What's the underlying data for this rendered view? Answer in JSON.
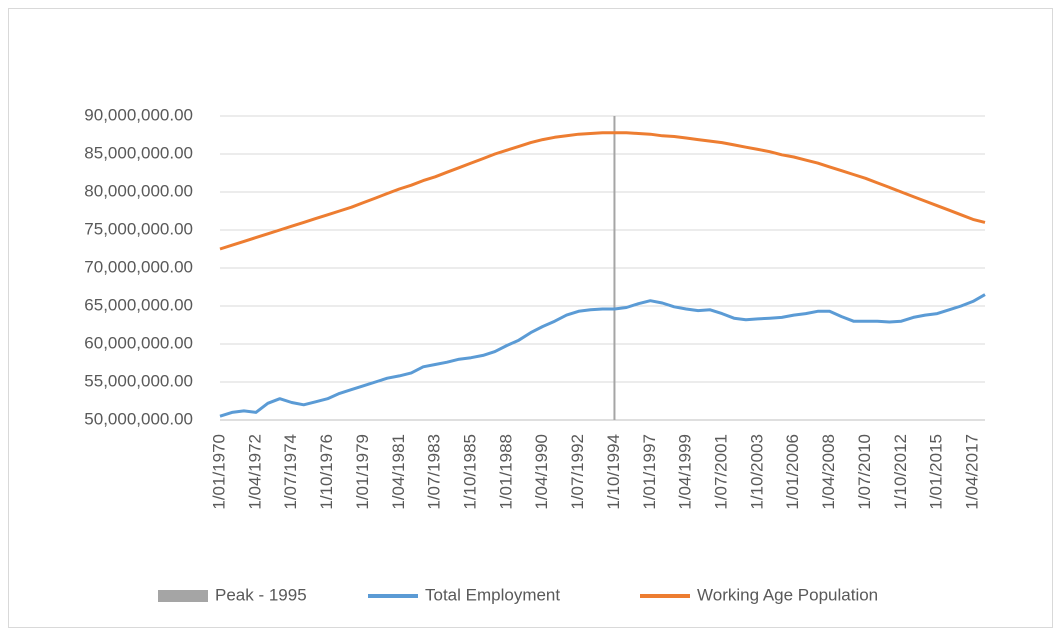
{
  "chart_data": {
    "type": "line",
    "categories": [
      "1/01/1970",
      null,
      null,
      "1/04/1972",
      null,
      null,
      "1/07/1974",
      null,
      null,
      "1/10/1976",
      null,
      null,
      "1/01/1979",
      null,
      null,
      "1/04/1981",
      null,
      null,
      "1/07/1983",
      null,
      null,
      "1/10/1985",
      null,
      null,
      "1/01/1988",
      null,
      null,
      "1/04/1990",
      null,
      null,
      "1/07/1992",
      null,
      null,
      "1/10/1994",
      null,
      null,
      "1/01/1997",
      null,
      null,
      "1/04/1999",
      null,
      null,
      "1/07/2001",
      null,
      null,
      "1/10/2003",
      null,
      null,
      "1/01/2006",
      null,
      null,
      "1/04/2008",
      null,
      null,
      "1/07/2010",
      null,
      null,
      "1/10/2012",
      null,
      null,
      "1/01/2015",
      null,
      null,
      "1/04/2017",
      null
    ],
    "series": [
      {
        "name": "Peak - 1995",
        "type": "bar",
        "color": "#a5a5a5",
        "values": [
          null,
          null,
          null,
          null,
          null,
          null,
          null,
          null,
          null,
          null,
          null,
          null,
          null,
          null,
          null,
          null,
          null,
          null,
          null,
          null,
          null,
          null,
          null,
          null,
          null,
          null,
          null,
          null,
          null,
          null,
          null,
          null,
          null,
          90000000,
          null,
          null,
          null,
          null,
          null,
          null,
          null,
          null,
          null,
          null,
          null,
          null,
          null,
          null,
          null,
          null,
          null,
          null,
          null,
          null,
          null,
          null,
          null,
          null,
          null,
          null,
          null,
          null,
          null,
          null,
          null
        ]
      },
      {
        "name": "Total Employment",
        "type": "line",
        "color": "#5b9bd5",
        "values": [
          50500000,
          51000000,
          51200000,
          51000000,
          52200000,
          52800000,
          52300000,
          52000000,
          52400000,
          52800000,
          53500000,
          54000000,
          54500000,
          55000000,
          55500000,
          55800000,
          56200000,
          57000000,
          57300000,
          57600000,
          58000000,
          58200000,
          58500000,
          59000000,
          59800000,
          60500000,
          61500000,
          62300000,
          63000000,
          63800000,
          64300000,
          64500000,
          64600000,
          64600000,
          64800000,
          65300000,
          65700000,
          65400000,
          64900000,
          64600000,
          64400000,
          64500000,
          64000000,
          63400000,
          63200000,
          63300000,
          63400000,
          63500000,
          63800000,
          64000000,
          64300000,
          64300000,
          63600000,
          63000000,
          63000000,
          63000000,
          62900000,
          63000000,
          63500000,
          63800000,
          64000000,
          64500000,
          65000000,
          65600000,
          66500000
        ]
      },
      {
        "name": "Working Age Population",
        "type": "line",
        "color": "#ed7d31",
        "values": [
          72500000,
          73000000,
          73500000,
          74000000,
          74500000,
          75000000,
          75500000,
          76000000,
          76500000,
          77000000,
          77500000,
          78000000,
          78600000,
          79200000,
          79800000,
          80400000,
          80900000,
          81500000,
          82000000,
          82600000,
          83200000,
          83800000,
          84400000,
          85000000,
          85500000,
          86000000,
          86500000,
          86900000,
          87200000,
          87400000,
          87600000,
          87700000,
          87800000,
          87800000,
          87800000,
          87700000,
          87600000,
          87400000,
          87300000,
          87100000,
          86900000,
          86700000,
          86500000,
          86200000,
          85900000,
          85600000,
          85300000,
          84900000,
          84600000,
          84200000,
          83800000,
          83300000,
          82800000,
          82300000,
          81800000,
          81200000,
          80600000,
          80000000,
          79400000,
          78800000,
          78200000,
          77600000,
          77000000,
          76400000,
          76000000
        ]
      }
    ],
    "ylim": [
      50000000,
      90000000
    ],
    "yticks": [
      {
        "value": 50000000,
        "label": "50,000,000.00"
      },
      {
        "value": 55000000,
        "label": "55,000,000.00"
      },
      {
        "value": 60000000,
        "label": "60,000,000.00"
      },
      {
        "value": 65000000,
        "label": "65,000,000.00"
      },
      {
        "value": 70000000,
        "label": "70,000,000.00"
      },
      {
        "value": 75000000,
        "label": "75,000,000.00"
      },
      {
        "value": 80000000,
        "label": "80,000,000.00"
      },
      {
        "value": 85000000,
        "label": "85,000,000.00"
      },
      {
        "value": 90000000,
        "label": "90,000,000.00"
      }
    ],
    "grid": true,
    "legend": "bottom"
  }
}
